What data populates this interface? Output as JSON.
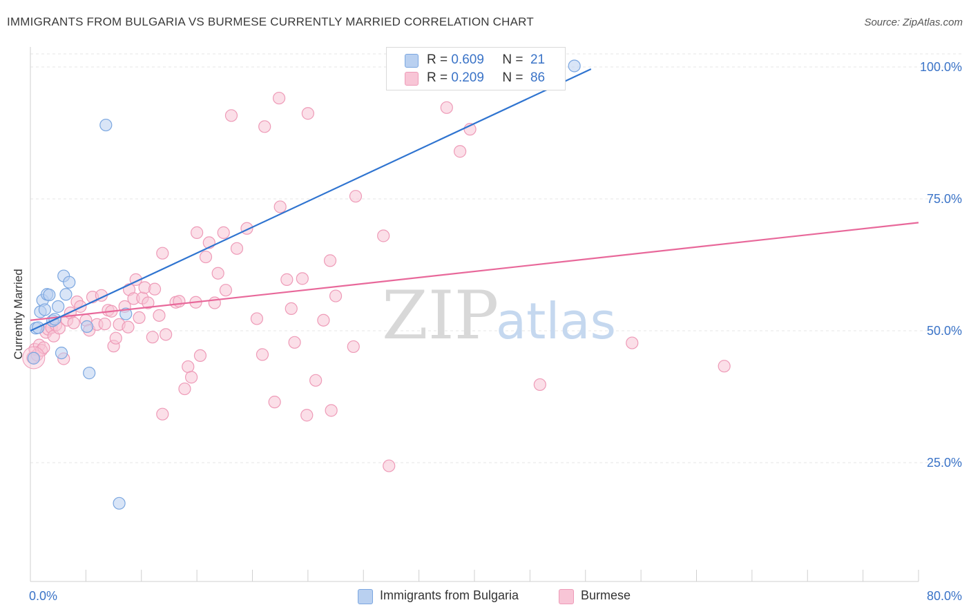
{
  "title": "IMMIGRANTS FROM BULGARIA VS BURMESE CURRENTLY MARRIED CORRELATION CHART",
  "source": "Source: ZipAtlas.com",
  "colors": {
    "blue_fill": "#b9d0f0",
    "blue_stroke": "#7aa6e0",
    "blue_line": "#2f74d0",
    "pink_fill": "#f8c5d6",
    "pink_stroke": "#ee9ab7",
    "pink_line": "#e8689a",
    "accent_text": "#3a73c7",
    "grid": "#e6e6e6"
  },
  "legend_top": [
    {
      "r_label": "R = ",
      "r_value": "0.609",
      "n_label": "N = ",
      "n_value": "21"
    },
    {
      "r_label": "R = ",
      "r_value": "0.209",
      "n_label": "N = ",
      "n_value": "86"
    }
  ],
  "watermark": {
    "zip": "ZIP",
    "atlas": "atlas"
  },
  "chart_data": {
    "type": "scatter",
    "title": "IMMIGRANTS FROM BULGARIA VS BURMESE CURRENTLY MARRIED CORRELATION CHART",
    "xlabel": "",
    "ylabel": "Currently Married",
    "xlim": [
      0,
      80
    ],
    "ylim": [
      0,
      105
    ],
    "x_tick_labels": [
      "0.0%",
      "80.0%"
    ],
    "y_ticks": [
      25,
      50,
      75,
      100
    ],
    "y_tick_labels": [
      "25.0%",
      "50.0%",
      "75.0%",
      "100.0%"
    ],
    "grid": true,
    "legend": "bottom-center",
    "series": [
      {
        "name": "Immigrants from Bulgaria",
        "color": "blue",
        "r": 0.609,
        "n": 21,
        "trend": [
          [
            0.0,
            50.0
          ],
          [
            50.5,
            99.6
          ]
        ],
        "points": [
          [
            0.3,
            44.8
          ],
          [
            0.5,
            50.5
          ],
          [
            0.7,
            50.6
          ],
          [
            0.9,
            53.6
          ],
          [
            1.1,
            55.8
          ],
          [
            1.3,
            54.0
          ],
          [
            1.5,
            56.9
          ],
          [
            1.7,
            56.8
          ],
          [
            2.0,
            51.9
          ],
          [
            2.2,
            52.2
          ],
          [
            2.5,
            54.6
          ],
          [
            2.8,
            45.8
          ],
          [
            3.0,
            60.4
          ],
          [
            3.2,
            56.9
          ],
          [
            3.5,
            59.2
          ],
          [
            5.1,
            50.8
          ],
          [
            5.3,
            42.0
          ],
          [
            6.8,
            89.0
          ],
          [
            8.0,
            17.3
          ],
          [
            8.6,
            53.2
          ],
          [
            49.0,
            100.2
          ]
        ]
      },
      {
        "name": "Burmese",
        "color": "pink",
        "r": 0.209,
        "n": 86,
        "trend": [
          [
            0.0,
            52.0
          ],
          [
            80.0,
            70.5
          ]
        ],
        "points": [
          [
            0.2,
            44.9
          ],
          [
            0.4,
            46.5
          ],
          [
            0.6,
            45.4
          ],
          [
            0.8,
            47.3
          ],
          [
            1.0,
            46.3
          ],
          [
            1.2,
            46.8
          ],
          [
            1.4,
            49.7
          ],
          [
            1.6,
            50.3
          ],
          [
            1.9,
            50.6
          ],
          [
            2.1,
            49.0
          ],
          [
            2.3,
            51.1
          ],
          [
            2.6,
            50.5
          ],
          [
            3.0,
            44.7
          ],
          [
            3.3,
            52.0
          ],
          [
            3.6,
            53.4
          ],
          [
            3.9,
            51.5
          ],
          [
            4.2,
            55.5
          ],
          [
            4.5,
            54.6
          ],
          [
            5.0,
            52.0
          ],
          [
            5.3,
            50.1
          ],
          [
            5.6,
            56.4
          ],
          [
            6.0,
            51.2
          ],
          [
            6.4,
            56.7
          ],
          [
            6.7,
            51.3
          ],
          [
            7.0,
            53.9
          ],
          [
            7.3,
            53.7
          ],
          [
            7.5,
            47.1
          ],
          [
            7.7,
            48.6
          ],
          [
            8.0,
            51.2
          ],
          [
            8.5,
            54.6
          ],
          [
            8.8,
            50.7
          ],
          [
            8.9,
            57.8
          ],
          [
            9.3,
            56.1
          ],
          [
            9.5,
            59.7
          ],
          [
            9.8,
            52.5
          ],
          [
            10.1,
            56.2
          ],
          [
            10.3,
            58.2
          ],
          [
            10.6,
            55.3
          ],
          [
            11.0,
            48.8
          ],
          [
            11.2,
            57.9
          ],
          [
            11.6,
            52.9
          ],
          [
            11.9,
            64.7
          ],
          [
            12.2,
            49.3
          ],
          [
            11.9,
            34.2
          ],
          [
            13.1,
            55.4
          ],
          [
            13.4,
            55.6
          ],
          [
            13.9,
            39.0
          ],
          [
            14.2,
            43.2
          ],
          [
            14.5,
            41.2
          ],
          [
            14.9,
            55.4
          ],
          [
            15.3,
            45.3
          ],
          [
            15.0,
            68.6
          ],
          [
            15.8,
            64.0
          ],
          [
            16.1,
            66.7
          ],
          [
            16.6,
            55.3
          ],
          [
            16.9,
            60.9
          ],
          [
            17.4,
            68.6
          ],
          [
            17.6,
            57.7
          ],
          [
            18.1,
            90.8
          ],
          [
            18.6,
            65.6
          ],
          [
            19.5,
            69.4
          ],
          [
            20.4,
            52.3
          ],
          [
            20.9,
            45.5
          ],
          [
            21.1,
            88.7
          ],
          [
            22.0,
            36.5
          ],
          [
            22.4,
            94.1
          ],
          [
            22.5,
            73.5
          ],
          [
            23.1,
            59.7
          ],
          [
            23.5,
            54.2
          ],
          [
            23.8,
            47.8
          ],
          [
            24.5,
            59.9
          ],
          [
            24.9,
            34.0
          ],
          [
            25.0,
            91.2
          ],
          [
            25.7,
            40.6
          ],
          [
            26.4,
            52.0
          ],
          [
            27.0,
            63.3
          ],
          [
            27.1,
            34.9
          ],
          [
            27.5,
            56.6
          ],
          [
            29.1,
            47.0
          ],
          [
            29.3,
            75.5
          ],
          [
            31.8,
            68.0
          ],
          [
            32.3,
            24.4
          ],
          [
            37.5,
            92.3
          ],
          [
            38.7,
            84.0
          ],
          [
            39.6,
            88.2
          ],
          [
            45.9,
            39.8
          ],
          [
            54.2,
            47.7
          ],
          [
            62.5,
            43.3
          ]
        ]
      }
    ]
  },
  "legend_bottom": [
    "Immigrants from Bulgaria",
    "Burmese"
  ]
}
